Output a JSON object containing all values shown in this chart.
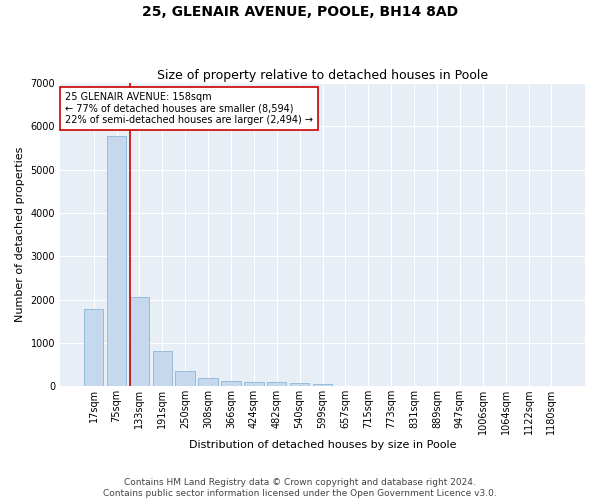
{
  "title": "25, GLENAIR AVENUE, POOLE, BH14 8AD",
  "subtitle": "Size of property relative to detached houses in Poole",
  "xlabel": "Distribution of detached houses by size in Poole",
  "ylabel": "Number of detached properties",
  "bar_color": "#c5d8ee",
  "bar_edge_color": "#7badd4",
  "background_color": "#e8eef6",
  "grid_color": "#ffffff",
  "categories": [
    "17sqm",
    "75sqm",
    "133sqm",
    "191sqm",
    "250sqm",
    "308sqm",
    "366sqm",
    "424sqm",
    "482sqm",
    "540sqm",
    "599sqm",
    "657sqm",
    "715sqm",
    "773sqm",
    "831sqm",
    "889sqm",
    "947sqm",
    "1006sqm",
    "1064sqm",
    "1122sqm",
    "1180sqm"
  ],
  "values": [
    1780,
    5780,
    2060,
    820,
    340,
    190,
    120,
    100,
    90,
    80,
    60,
    0,
    0,
    0,
    0,
    0,
    0,
    0,
    0,
    0,
    0
  ],
  "ylim": [
    0,
    7000
  ],
  "yticks": [
    0,
    1000,
    2000,
    3000,
    4000,
    5000,
    6000,
    7000
  ],
  "vline_color": "#cc0000",
  "annotation_text": "25 GLENAIR AVENUE: 158sqm\n← 77% of detached houses are smaller (8,594)\n22% of semi-detached houses are larger (2,494) →",
  "annotation_box_color": "#ffffff",
  "annotation_box_edgecolor": "#cc0000",
  "footer_line1": "Contains HM Land Registry data © Crown copyright and database right 2024.",
  "footer_line2": "Contains public sector information licensed under the Open Government Licence v3.0.",
  "title_fontsize": 10,
  "subtitle_fontsize": 9,
  "axis_label_fontsize": 8,
  "tick_fontsize": 7,
  "annotation_fontsize": 7,
  "footer_fontsize": 6.5,
  "fig_width": 6.0,
  "fig_height": 5.0,
  "fig_dpi": 100
}
